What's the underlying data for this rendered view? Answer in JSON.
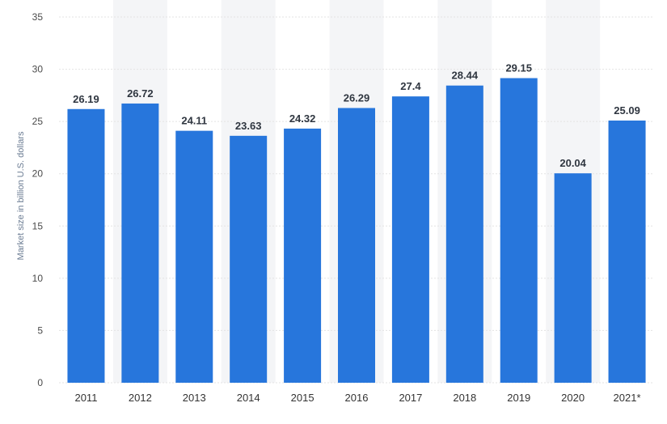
{
  "chart_data": {
    "type": "bar",
    "categories": [
      "2011",
      "2012",
      "2013",
      "2014",
      "2015",
      "2016",
      "2017",
      "2018",
      "2019",
      "2020",
      "2021*"
    ],
    "values": [
      26.19,
      26.72,
      24.11,
      23.63,
      24.32,
      26.29,
      27.4,
      28.44,
      29.15,
      20.04,
      25.09
    ],
    "value_labels": [
      "26.19",
      "26.72",
      "24.11",
      "23.63",
      "24.32",
      "26.29",
      "27.4",
      "28.44",
      "29.15",
      "20.04",
      "25.09"
    ],
    "yticks": [
      0,
      5,
      10,
      15,
      20,
      25,
      30,
      35
    ],
    "ylim": [
      0,
      35
    ],
    "ylabel": "Market size in billion U.S. dollars",
    "xlabel": "",
    "title": "",
    "bar_color": "#2776dc",
    "band_color": "#f4f5f7",
    "grid": true
  }
}
